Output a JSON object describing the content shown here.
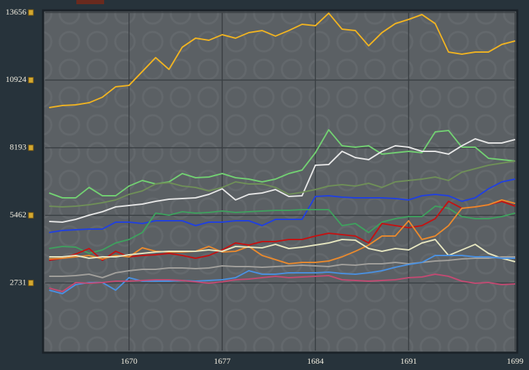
{
  "chart_data": {
    "type": "line",
    "x": [
      1664,
      1665,
      1666,
      1667,
      1668,
      1669,
      1670,
      1671,
      1672,
      1673,
      1674,
      1675,
      1676,
      1677,
      1678,
      1679,
      1680,
      1681,
      1682,
      1683,
      1684,
      1685,
      1686,
      1687,
      1688,
      1689,
      1690,
      1691,
      1692,
      1693,
      1694,
      1695,
      1696,
      1697,
      1698,
      1699
    ],
    "xlim": [
      1663.7,
      1699
    ],
    "xticks": [
      1670,
      1677,
      1684,
      1691,
      1699
    ],
    "ylim": [
      0,
      13656
    ],
    "yticks": [
      2731,
      5462,
      8193,
      10924,
      13656
    ],
    "grid": true,
    "series": [
      {
        "color": "#f0b321",
        "values": [
          9814,
          9898,
          9926,
          10010,
          10235,
          10655,
          10711,
          11272,
          11833,
          11356,
          12253,
          12618,
          12534,
          12758,
          12618,
          12842,
          12926,
          12702,
          12926,
          13179,
          13123,
          13627,
          12982,
          12926,
          12310,
          12842,
          13207,
          13375,
          13571,
          13207,
          12057,
          11973,
          12057,
          12057,
          12366,
          12506
        ]
      },
      {
        "color": "#72d072",
        "values": [
          6365,
          6169,
          6169,
          6589,
          6253,
          6253,
          6645,
          6870,
          6730,
          6814,
          7150,
          6982,
          7010,
          7150,
          6982,
          6926,
          6814,
          6926,
          7150,
          7290,
          7991,
          8917,
          8272,
          8216,
          8272,
          7935,
          7991,
          8047,
          7991,
          8833,
          8889,
          8216,
          8216,
          7767,
          7711,
          7655
        ]
      },
      {
        "color": "#e6e6e6",
        "values": [
          5215,
          5187,
          5300,
          5468,
          5608,
          5804,
          5860,
          5916,
          6029,
          6113,
          6141,
          6169,
          6309,
          6533,
          6085,
          6309,
          6365,
          6505,
          6225,
          6253,
          7487,
          7515,
          8047,
          7795,
          7711,
          8047,
          8272,
          8216,
          8047,
          8047,
          7935,
          8272,
          8552,
          8384,
          8384,
          8524
        ]
      },
      {
        "color": "#6f8f58",
        "values": [
          5832,
          5804,
          5832,
          5888,
          5973,
          6085,
          6309,
          6449,
          6730,
          6786,
          6645,
          6589,
          6449,
          6589,
          6814,
          6730,
          6730,
          6589,
          6309,
          6393,
          6505,
          6645,
          6702,
          6645,
          6758,
          6589,
          6814,
          6870,
          6926,
          7010,
          6870,
          7206,
          7346,
          7487,
          7571,
          7655
        ]
      },
      {
        "color": "#2040e0",
        "values": [
          4767,
          4851,
          4879,
          4907,
          4907,
          5187,
          5187,
          5131,
          5243,
          5243,
          5243,
          5047,
          5187,
          5187,
          5243,
          5243,
          5047,
          5300,
          5300,
          5300,
          6225,
          6253,
          6197,
          6169,
          6169,
          6169,
          6141,
          6085,
          6253,
          6309,
          6253,
          6029,
          6169,
          6533,
          6814,
          6926
        ]
      },
      {
        "color": "#3fa05e",
        "values": [
          4122,
          4206,
          4178,
          3926,
          4066,
          4346,
          4486,
          4767,
          5552,
          5468,
          5608,
          5552,
          5580,
          5636,
          5580,
          5608,
          5636,
          5664,
          5664,
          5692,
          5692,
          5692,
          5047,
          5131,
          4767,
          5187,
          5328,
          5412,
          5412,
          5832,
          5748,
          5412,
          5328,
          5328,
          5412,
          5552
        ]
      },
      {
        "color": "#c41212",
        "values": [
          3645,
          3729,
          3898,
          4122,
          3645,
          4010,
          3785,
          3841,
          3870,
          3926,
          3841,
          3729,
          3841,
          4066,
          4346,
          4262,
          4402,
          4402,
          4486,
          4486,
          4627,
          4739,
          4683,
          4627,
          4346,
          5131,
          5047,
          4963,
          5047,
          5328,
          6029,
          5748,
          5804,
          5888,
          6029,
          5832
        ]
      },
      {
        "color": "#e8892e",
        "values": [
          3701,
          3729,
          3785,
          3841,
          3701,
          3841,
          3785,
          4150,
          4010,
          3982,
          3982,
          4010,
          4206,
          3982,
          4010,
          4206,
          3841,
          3673,
          3505,
          3561,
          3561,
          3617,
          3785,
          4010,
          4262,
          4627,
          4627,
          5243,
          4486,
          4627,
          5047,
          5748,
          5804,
          5888,
          6085,
          5944
        ]
      },
      {
        "color": "#e6e6c0",
        "values": [
          3785,
          3785,
          3841,
          3729,
          3785,
          3785,
          3870,
          3926,
          3982,
          4010,
          4010,
          4010,
          4066,
          4010,
          4206,
          4178,
          4150,
          4290,
          4122,
          4178,
          4262,
          4346,
          4486,
          4458,
          4122,
          4010,
          4122,
          4066,
          4346,
          4486,
          3841,
          4066,
          4290,
          3926,
          3729,
          3589
        ]
      },
      {
        "color": "#a2a09c",
        "values": [
          3000,
          3000,
          3028,
          3084,
          2944,
          3140,
          3225,
          3281,
          3281,
          3337,
          3337,
          3309,
          3337,
          3421,
          3393,
          3393,
          3365,
          3393,
          3421,
          3449,
          3421,
          3393,
          3477,
          3449,
          3505,
          3505,
          3561,
          3505,
          3561,
          3617,
          3645,
          3701,
          3729,
          3729,
          3785,
          3785
        ]
      },
      {
        "color": "#4a90e0",
        "values": [
          2439,
          2299,
          2664,
          2748,
          2748,
          2439,
          2944,
          2804,
          2804,
          2804,
          2832,
          2804,
          2832,
          2860,
          2944,
          3225,
          3084,
          3084,
          3140,
          3140,
          3140,
          3169,
          3112,
          3084,
          3140,
          3225,
          3365,
          3477,
          3561,
          3841,
          3841,
          3841,
          3785,
          3785,
          3729,
          3729
        ]
      },
      {
        "color": "#c24a72",
        "values": [
          2524,
          2383,
          2748,
          2720,
          2748,
          2804,
          2804,
          2832,
          2860,
          2860,
          2832,
          2776,
          2720,
          2776,
          2860,
          2888,
          2944,
          3000,
          2944,
          2972,
          3000,
          3028,
          2860,
          2832,
          2804,
          2832,
          2860,
          2944,
          2972,
          3084,
          3000,
          2804,
          2720,
          2748,
          2664,
          2692
        ]
      }
    ]
  }
}
